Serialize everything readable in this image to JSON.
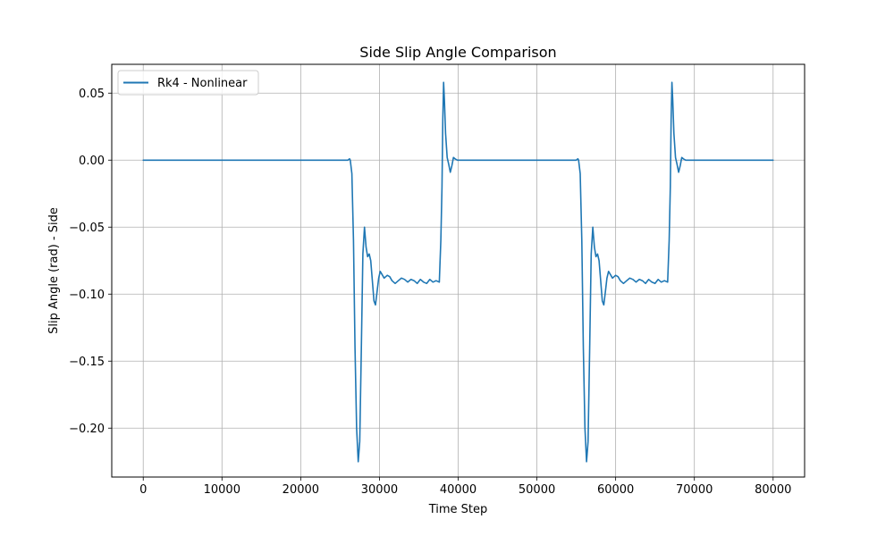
{
  "chart_data": {
    "type": "line",
    "title": "Side Slip Angle Comparison",
    "xlabel": "Time Step",
    "ylabel": "Slip Angle (rad) - Side",
    "xlim": [
      -4000,
      84000
    ],
    "ylim": [
      -0.2365,
      0.0715
    ],
    "x_ticks": [
      0,
      10000,
      20000,
      30000,
      40000,
      50000,
      60000,
      70000,
      80000
    ],
    "x_tick_labels": [
      "0",
      "10000",
      "20000",
      "30000",
      "40000",
      "50000",
      "60000",
      "70000",
      "80000"
    ],
    "y_ticks": [
      0.05,
      0.0,
      -0.05,
      -0.1,
      -0.15,
      -0.2
    ],
    "y_tick_labels": [
      "0.05",
      "0.00",
      "−0.05",
      "−0.10",
      "−0.15",
      "−0.20"
    ],
    "grid": true,
    "legend_position": "top-left",
    "series": [
      {
        "name": "Rk4 - Nonlinear",
        "color": "#1f77b4",
        "x": [
          0,
          26000,
          26200,
          26300,
          26500,
          26700,
          26900,
          27100,
          27300,
          27500,
          27700,
          27900,
          28100,
          28300,
          28500,
          28700,
          28900,
          29100,
          29300,
          29500,
          29700,
          29900,
          30100,
          30300,
          30600,
          31000,
          31300,
          31600,
          32000,
          32400,
          32800,
          33200,
          33600,
          34000,
          34400,
          34800,
          35200,
          35600,
          36000,
          36400,
          36800,
          37200,
          37600,
          37800,
          37950,
          38050,
          38150,
          38250,
          38400,
          38600,
          38800,
          39000,
          39200,
          39400,
          39600,
          39900,
          40200,
          40600,
          41200,
          42000,
          55000,
          55200,
          55300,
          55500,
          55700,
          55900,
          56100,
          56300,
          56500,
          56700,
          56900,
          57100,
          57300,
          57500,
          57700,
          57900,
          58100,
          58300,
          58500,
          58700,
          58900,
          59100,
          59300,
          59600,
          60000,
          60300,
          60600,
          61000,
          61400,
          61800,
          62200,
          62600,
          63000,
          63400,
          63800,
          64200,
          64600,
          65000,
          65400,
          65800,
          66200,
          66600,
          66800,
          66950,
          67050,
          67150,
          67250,
          67400,
          67600,
          67800,
          68000,
          68200,
          68400,
          68600,
          68900,
          69200,
          69600,
          70200,
          71000,
          80000
        ],
        "y": [
          0.0,
          0.0,
          0.001,
          0.0,
          -0.01,
          -0.06,
          -0.14,
          -0.2,
          -0.225,
          -0.21,
          -0.14,
          -0.07,
          -0.05,
          -0.065,
          -0.072,
          -0.07,
          -0.075,
          -0.09,
          -0.105,
          -0.108,
          -0.098,
          -0.088,
          -0.083,
          -0.085,
          -0.088,
          -0.086,
          -0.087,
          -0.09,
          -0.092,
          -0.09,
          -0.088,
          -0.089,
          -0.091,
          -0.089,
          -0.09,
          -0.092,
          -0.089,
          -0.091,
          -0.092,
          -0.089,
          -0.091,
          -0.09,
          -0.091,
          -0.06,
          -0.02,
          0.03,
          0.058,
          0.045,
          0.02,
          0.002,
          -0.003,
          -0.009,
          -0.004,
          0.002,
          0.001,
          0.0,
          0.0,
          0.0,
          0.0,
          0.0,
          0.0,
          0.001,
          0.0,
          -0.01,
          -0.06,
          -0.14,
          -0.2,
          -0.225,
          -0.21,
          -0.14,
          -0.07,
          -0.05,
          -0.065,
          -0.072,
          -0.07,
          -0.075,
          -0.09,
          -0.105,
          -0.108,
          -0.098,
          -0.088,
          -0.083,
          -0.085,
          -0.088,
          -0.086,
          -0.087,
          -0.09,
          -0.092,
          -0.09,
          -0.088,
          -0.089,
          -0.091,
          -0.089,
          -0.09,
          -0.092,
          -0.089,
          -0.091,
          -0.092,
          -0.089,
          -0.091,
          -0.09,
          -0.091,
          -0.06,
          -0.02,
          0.03,
          0.058,
          0.045,
          0.02,
          0.002,
          -0.003,
          -0.009,
          -0.004,
          0.002,
          0.001,
          0.0,
          0.0,
          0.0,
          0.0,
          0.0,
          0.0
        ]
      }
    ]
  }
}
